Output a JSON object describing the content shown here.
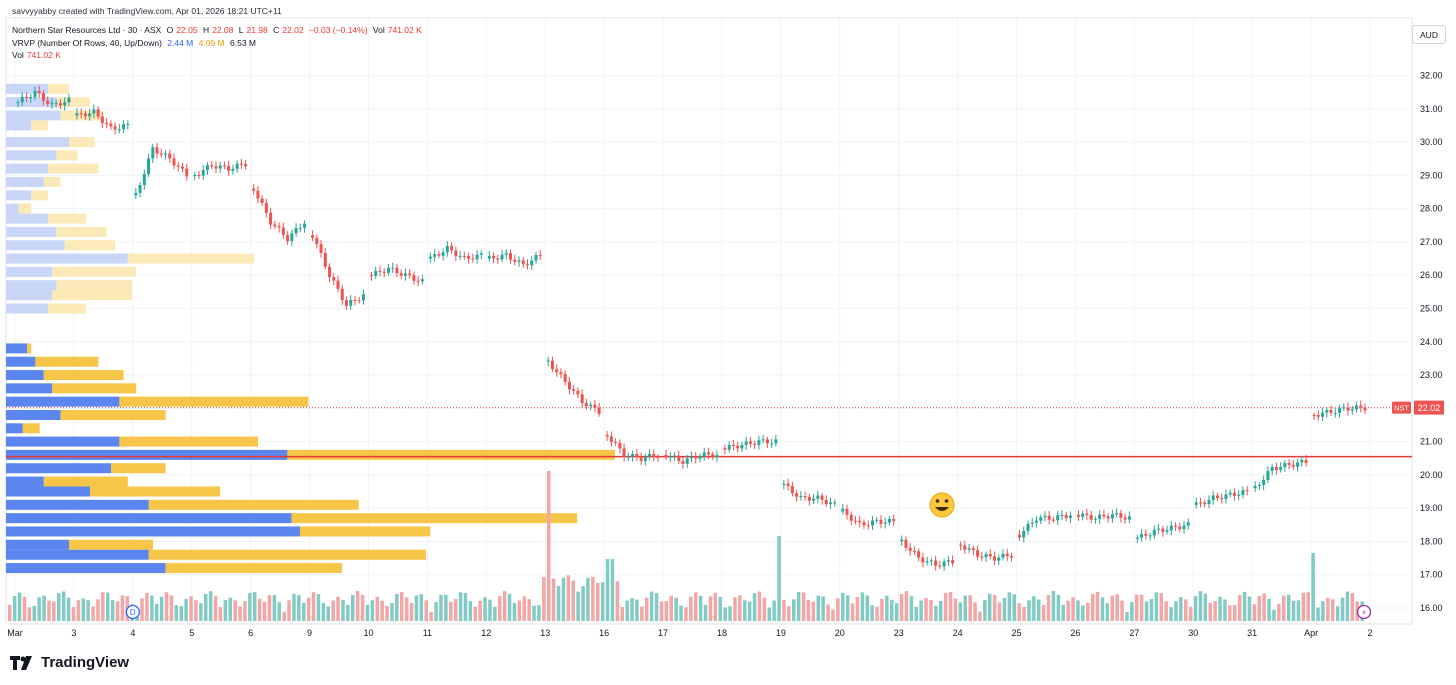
{
  "header": {
    "credit": "savvyyabby created with TradingView.com, Apr 01, 2026 18:21 UTC+11",
    "symbol": "Northern Star Resources Ltd · 30 · ASX",
    "ohlc": {
      "o_label": "O",
      "o": "22.05",
      "h_label": "H",
      "h": "22.08",
      "l_label": "L",
      "l": "21.98",
      "c_label": "C",
      "c": "22.02",
      "change": "−0.03 (−0.14%)",
      "vol_label": "Vol",
      "vol": "741.02 K"
    },
    "vrvp": {
      "label": "VRVP (Number Of Rows, 40, Up/Down)",
      "up": "2.44 M",
      "down": "4.09 M",
      "total": "6.53 M"
    },
    "vol_row": {
      "label": "Vol",
      "value": "741.02 K"
    }
  },
  "currency": "AUD",
  "price_tag": {
    "ticker": "NST",
    "price": "22.02"
  },
  "brand": "TradingView",
  "markers": {
    "dividend": "D",
    "flash": "⚡"
  },
  "emoji": "😀",
  "colors": {
    "up": "#26a69a",
    "down": "#ef5350",
    "vol_up": "#80cbc4",
    "vol_down": "#f4a6a6",
    "vp_up": "#5b86f0",
    "vp_down": "#f7c548",
    "vp_up_light": "#c8d6f8",
    "vp_down_light": "#fce9b8",
    "hline": "#e53935",
    "grid": "#f0f3fa"
  },
  "chart_data": {
    "type": "candlestick",
    "title": "Northern Star Resources Ltd · 30 · ASX",
    "y_ticks": [
      "32.00",
      "31.00",
      "30.00",
      "29.00",
      "28.00",
      "27.00",
      "26.00",
      "25.00",
      "24.00",
      "23.00",
      "22.00",
      "21.00",
      "20.00",
      "19.00",
      "18.00",
      "17.00",
      "16.00"
    ],
    "ylim": [
      15.6,
      32.8
    ],
    "x_ticks": [
      "Mar",
      "3",
      "4",
      "5",
      "6",
      "9",
      "10",
      "11",
      "12",
      "13",
      "16",
      "17",
      "18",
      "19",
      "20",
      "23",
      "24",
      "25",
      "26",
      "27",
      "30",
      "31",
      "Apr",
      "2"
    ],
    "horizontal_line": 20.55,
    "last_price": 22.02,
    "session_prices": [
      [
        31.2,
        31.5,
        31.1,
        31.25
      ],
      [
        30.8,
        30.9,
        30.4,
        30.5
      ],
      [
        28.4,
        29.8,
        29.5,
        29.0
      ],
      [
        29.0,
        29.3,
        29.2,
        29.35
      ],
      [
        28.6,
        27.6,
        27.1,
        27.6
      ],
      [
        27.2,
        26.0,
        25.1,
        25.4
      ],
      [
        26.0,
        26.2,
        26.0,
        25.8
      ],
      [
        26.5,
        26.8,
        26.5,
        26.6
      ],
      [
        26.5,
        26.6,
        26.3,
        26.6
      ],
      [
        23.4,
        22.8,
        22.2,
        21.9
      ],
      [
        21.2,
        20.6,
        20.5,
        20.6
      ],
      [
        20.6,
        20.4,
        20.6,
        20.6
      ],
      [
        20.8,
        20.9,
        21.0,
        21.0
      ],
      [
        19.7,
        19.3,
        19.3,
        19.1
      ],
      [
        18.9,
        18.5,
        18.6,
        18.6
      ],
      [
        18.0,
        17.5,
        17.3,
        17.4
      ],
      [
        17.9,
        17.6,
        17.5,
        17.6
      ],
      [
        18.2,
        18.7,
        18.7,
        18.8
      ],
      [
        18.8,
        18.7,
        18.8,
        18.7
      ],
      [
        18.1,
        18.3,
        18.4,
        18.5
      ],
      [
        19.1,
        19.3,
        19.4,
        19.5
      ],
      [
        19.6,
        20.2,
        20.3,
        20.4
      ],
      [
        21.8,
        21.9,
        22.0,
        22.02
      ]
    ],
    "volume_profile": [
      {
        "price": 31.6,
        "up": 0.1,
        "down": 0.05
      },
      {
        "price": 31.2,
        "up": 0.12,
        "down": 0.08
      },
      {
        "price": 30.8,
        "up": 0.13,
        "down": 0.1
      },
      {
        "price": 30.5,
        "up": 0.06,
        "down": 0.04
      },
      {
        "price": 30.0,
        "up": 0.15,
        "down": 0.06
      },
      {
        "price": 29.6,
        "up": 0.12,
        "down": 0.05
      },
      {
        "price": 29.2,
        "up": 0.1,
        "down": 0.12
      },
      {
        "price": 28.8,
        "up": 0.09,
        "down": 0.04
      },
      {
        "price": 28.4,
        "up": 0.06,
        "down": 0.04
      },
      {
        "price": 28.0,
        "up": 0.03,
        "down": 0.03
      },
      {
        "price": 27.7,
        "up": 0.1,
        "down": 0.09
      },
      {
        "price": 27.3,
        "up": 0.12,
        "down": 0.12
      },
      {
        "price": 26.9,
        "up": 0.14,
        "down": 0.12
      },
      {
        "price": 26.5,
        "up": 0.29,
        "down": 0.3
      },
      {
        "price": 26.1,
        "up": 0.11,
        "down": 0.2
      },
      {
        "price": 25.7,
        "up": 0.12,
        "down": 0.18
      },
      {
        "price": 25.4,
        "up": 0.11,
        "down": 0.19
      },
      {
        "price": 25.0,
        "up": 0.1,
        "down": 0.09
      },
      {
        "price": 23.8,
        "up": 0.05,
        "down": 0.01
      },
      {
        "price": 23.4,
        "up": 0.07,
        "down": 0.15
      },
      {
        "price": 23.0,
        "up": 0.09,
        "down": 0.19
      },
      {
        "price": 22.6,
        "up": 0.11,
        "down": 0.2
      },
      {
        "price": 22.2,
        "up": 0.27,
        "down": 0.45
      },
      {
        "price": 21.8,
        "up": 0.13,
        "down": 0.25
      },
      {
        "price": 21.4,
        "up": 0.04,
        "down": 0.04
      },
      {
        "price": 21.0,
        "up": 0.27,
        "down": 0.33
      },
      {
        "price": 20.6,
        "up": 0.67,
        "down": 0.78
      },
      {
        "price": 20.2,
        "up": 0.25,
        "down": 0.13
      },
      {
        "price": 19.8,
        "up": 0.09,
        "down": 0.2
      },
      {
        "price": 19.5,
        "up": 0.2,
        "down": 0.31
      },
      {
        "price": 19.1,
        "up": 0.34,
        "down": 0.5
      },
      {
        "price": 18.7,
        "up": 0.68,
        "down": 0.68
      },
      {
        "price": 18.3,
        "up": 0.7,
        "down": 0.31
      },
      {
        "price": 17.9,
        "up": 0.15,
        "down": 0.2
      },
      {
        "price": 17.6,
        "up": 0.34,
        "down": 0.66
      },
      {
        "price": 17.2,
        "up": 0.38,
        "down": 0.42
      }
    ]
  }
}
